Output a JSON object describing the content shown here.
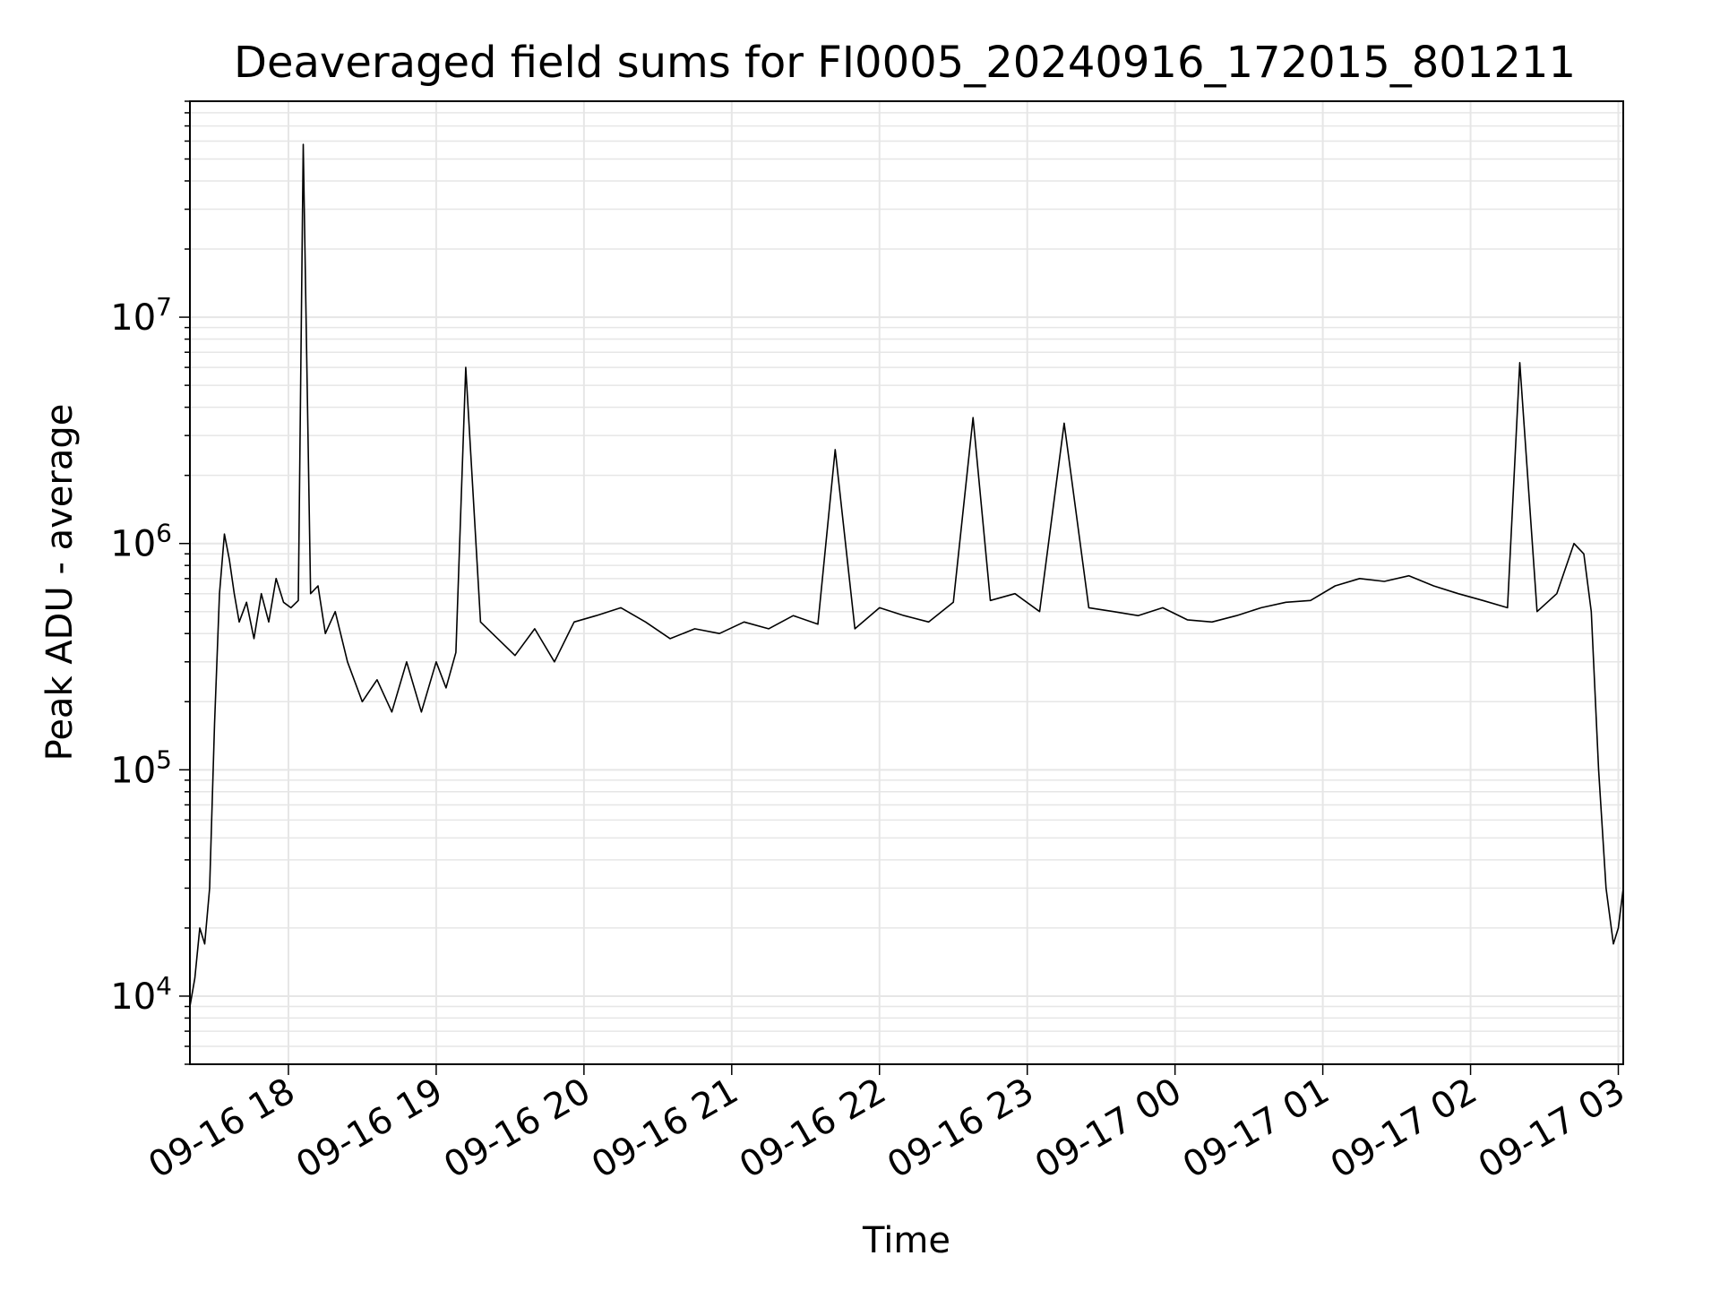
{
  "chart_data": {
    "type": "line",
    "title": "Deaveraged field sums for FI0005_20240916_172015_801211",
    "xlabel": "Time",
    "ylabel": "Peak ADU - average",
    "yscale": "log",
    "ylim": [
      5000,
      90000000
    ],
    "xlim": [
      "2024-09-16 17:20",
      "2024-09-17 03:02"
    ],
    "grid": true,
    "line_color": "#000000",
    "grid_color": "#e6e6e6",
    "x_ticks": [
      {
        "label": "09-16 18",
        "value": "2024-09-16 18:00"
      },
      {
        "label": "09-16 19",
        "value": "2024-09-16 19:00"
      },
      {
        "label": "09-16 20",
        "value": "2024-09-16 20:00"
      },
      {
        "label": "09-16 21",
        "value": "2024-09-16 21:00"
      },
      {
        "label": "09-16 22",
        "value": "2024-09-16 22:00"
      },
      {
        "label": "09-16 23",
        "value": "2024-09-16 23:00"
      },
      {
        "label": "09-17 00",
        "value": "2024-09-17 00:00"
      },
      {
        "label": "09-17 01",
        "value": "2024-09-17 01:00"
      },
      {
        "label": "09-17 02",
        "value": "2024-09-17 02:00"
      },
      {
        "label": "09-17 03",
        "value": "2024-09-17 03:00"
      }
    ],
    "y_ticks": [
      {
        "base": "10",
        "exp": "4",
        "value": 10000
      },
      {
        "base": "10",
        "exp": "5",
        "value": 100000
      },
      {
        "base": "10",
        "exp": "6",
        "value": 1000000
      },
      {
        "base": "10",
        "exp": "7",
        "value": 10000000
      }
    ],
    "series": [
      {
        "x": [
          "2024-09-16 17:20",
          "2024-09-16 17:22",
          "2024-09-16 17:24",
          "2024-09-16 17:26",
          "2024-09-16 17:28",
          "2024-09-16 17:30",
          "2024-09-16 17:32",
          "2024-09-16 17:34",
          "2024-09-16 17:36",
          "2024-09-16 17:38",
          "2024-09-16 17:40",
          "2024-09-16 17:43",
          "2024-09-16 17:46",
          "2024-09-16 17:49",
          "2024-09-16 17:52",
          "2024-09-16 17:55",
          "2024-09-16 17:58",
          "2024-09-16 18:01",
          "2024-09-16 18:04",
          "2024-09-16 18:06",
          "2024-09-16 18:09",
          "2024-09-16 18:12",
          "2024-09-16 18:15",
          "2024-09-16 18:19",
          "2024-09-16 18:24",
          "2024-09-16 18:30",
          "2024-09-16 18:36",
          "2024-09-16 18:42",
          "2024-09-16 18:48",
          "2024-09-16 18:54",
          "2024-09-16 19:00",
          "2024-09-16 19:04",
          "2024-09-16 19:08",
          "2024-09-16 19:12",
          "2024-09-16 19:18",
          "2024-09-16 19:25",
          "2024-09-16 19:32",
          "2024-09-16 19:40",
          "2024-09-16 19:48",
          "2024-09-16 19:56",
          "2024-09-16 20:05",
          "2024-09-16 20:15",
          "2024-09-16 20:25",
          "2024-09-16 20:35",
          "2024-09-16 20:45",
          "2024-09-16 20:55",
          "2024-09-16 21:05",
          "2024-09-16 21:15",
          "2024-09-16 21:25",
          "2024-09-16 21:35",
          "2024-09-16 21:42",
          "2024-09-16 21:50",
          "2024-09-16 22:00",
          "2024-09-16 22:10",
          "2024-09-16 22:20",
          "2024-09-16 22:30",
          "2024-09-16 22:38",
          "2024-09-16 22:45",
          "2024-09-16 22:55",
          "2024-09-16 23:05",
          "2024-09-16 23:15",
          "2024-09-16 23:25",
          "2024-09-16 23:35",
          "2024-09-16 23:45",
          "2024-09-16 23:55",
          "2024-09-17 00:05",
          "2024-09-17 00:15",
          "2024-09-17 00:25",
          "2024-09-17 00:35",
          "2024-09-17 00:45",
          "2024-09-17 00:55",
          "2024-09-17 01:05",
          "2024-09-17 01:15",
          "2024-09-17 01:25",
          "2024-09-17 01:35",
          "2024-09-17 01:45",
          "2024-09-17 01:55",
          "2024-09-17 02:05",
          "2024-09-17 02:15",
          "2024-09-17 02:20",
          "2024-09-17 02:27",
          "2024-09-17 02:35",
          "2024-09-17 02:42",
          "2024-09-17 02:46",
          "2024-09-17 02:49",
          "2024-09-17 02:52",
          "2024-09-17 02:55",
          "2024-09-17 02:58",
          "2024-09-17 03:00",
          "2024-09-17 03:02"
        ],
        "y": [
          9000,
          12000,
          20000,
          17000,
          30000,
          160000,
          600000,
          1100000,
          850000,
          600000,
          450000,
          550000,
          380000,
          600000,
          450000,
          700000,
          550000,
          520000,
          560000,
          58000000,
          600000,
          650000,
          400000,
          500000,
          300000,
          200000,
          250000,
          180000,
          300000,
          180000,
          300000,
          230000,
          330000,
          6000000,
          450000,
          380000,
          320000,
          420000,
          300000,
          450000,
          480000,
          520000,
          450000,
          380000,
          420000,
          400000,
          450000,
          420000,
          480000,
          440000,
          2600000,
          420000,
          520000,
          480000,
          450000,
          550000,
          3600000,
          560000,
          600000,
          500000,
          3400000,
          520000,
          500000,
          480000,
          520000,
          460000,
          450000,
          480000,
          520000,
          550000,
          560000,
          650000,
          700000,
          680000,
          720000,
          650000,
          600000,
          560000,
          520000,
          6300000,
          500000,
          600000,
          1000000,
          900000,
          500000,
          100000,
          30000,
          17000,
          20000,
          30000
        ]
      }
    ]
  }
}
